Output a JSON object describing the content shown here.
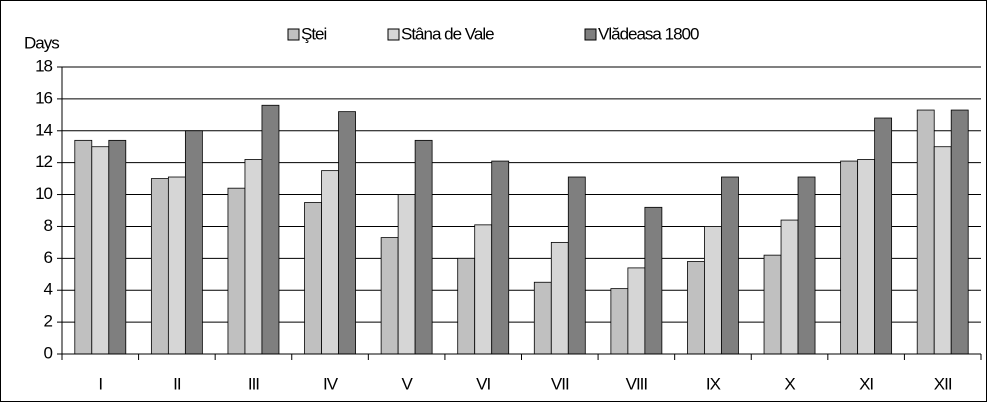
{
  "chart_data": {
    "type": "bar",
    "y_label": "Days",
    "categories": [
      "I",
      "II",
      "III",
      "IV",
      "V",
      "VI",
      "VII",
      "VIII",
      "IX",
      "X",
      "XI",
      "XII"
    ],
    "series": [
      {
        "name": "Ştei",
        "color": "#c0c0c0",
        "values": [
          13.4,
          11.0,
          10.4,
          9.5,
          7.3,
          6.0,
          4.5,
          4.1,
          5.8,
          6.2,
          12.1,
          15.3
        ]
      },
      {
        "name": "Stâna de Vale",
        "color": "#d6d6d6",
        "values": [
          13.0,
          11.1,
          12.2,
          11.5,
          10.0,
          8.1,
          7.0,
          5.4,
          8.0,
          8.4,
          12.2,
          13.0
        ]
      },
      {
        "name": "Vlădeasa 1800",
        "color": "#7f7f7f",
        "values": [
          13.4,
          14.0,
          15.6,
          15.2,
          13.4,
          12.1,
          11.1,
          9.2,
          11.1,
          11.1,
          14.8,
          15.3
        ]
      }
    ],
    "ylim": [
      0,
      18
    ],
    "yticks": [
      0,
      2,
      4,
      6,
      8,
      10,
      12,
      14,
      16,
      18
    ],
    "grid": true,
    "legend": "top"
  }
}
